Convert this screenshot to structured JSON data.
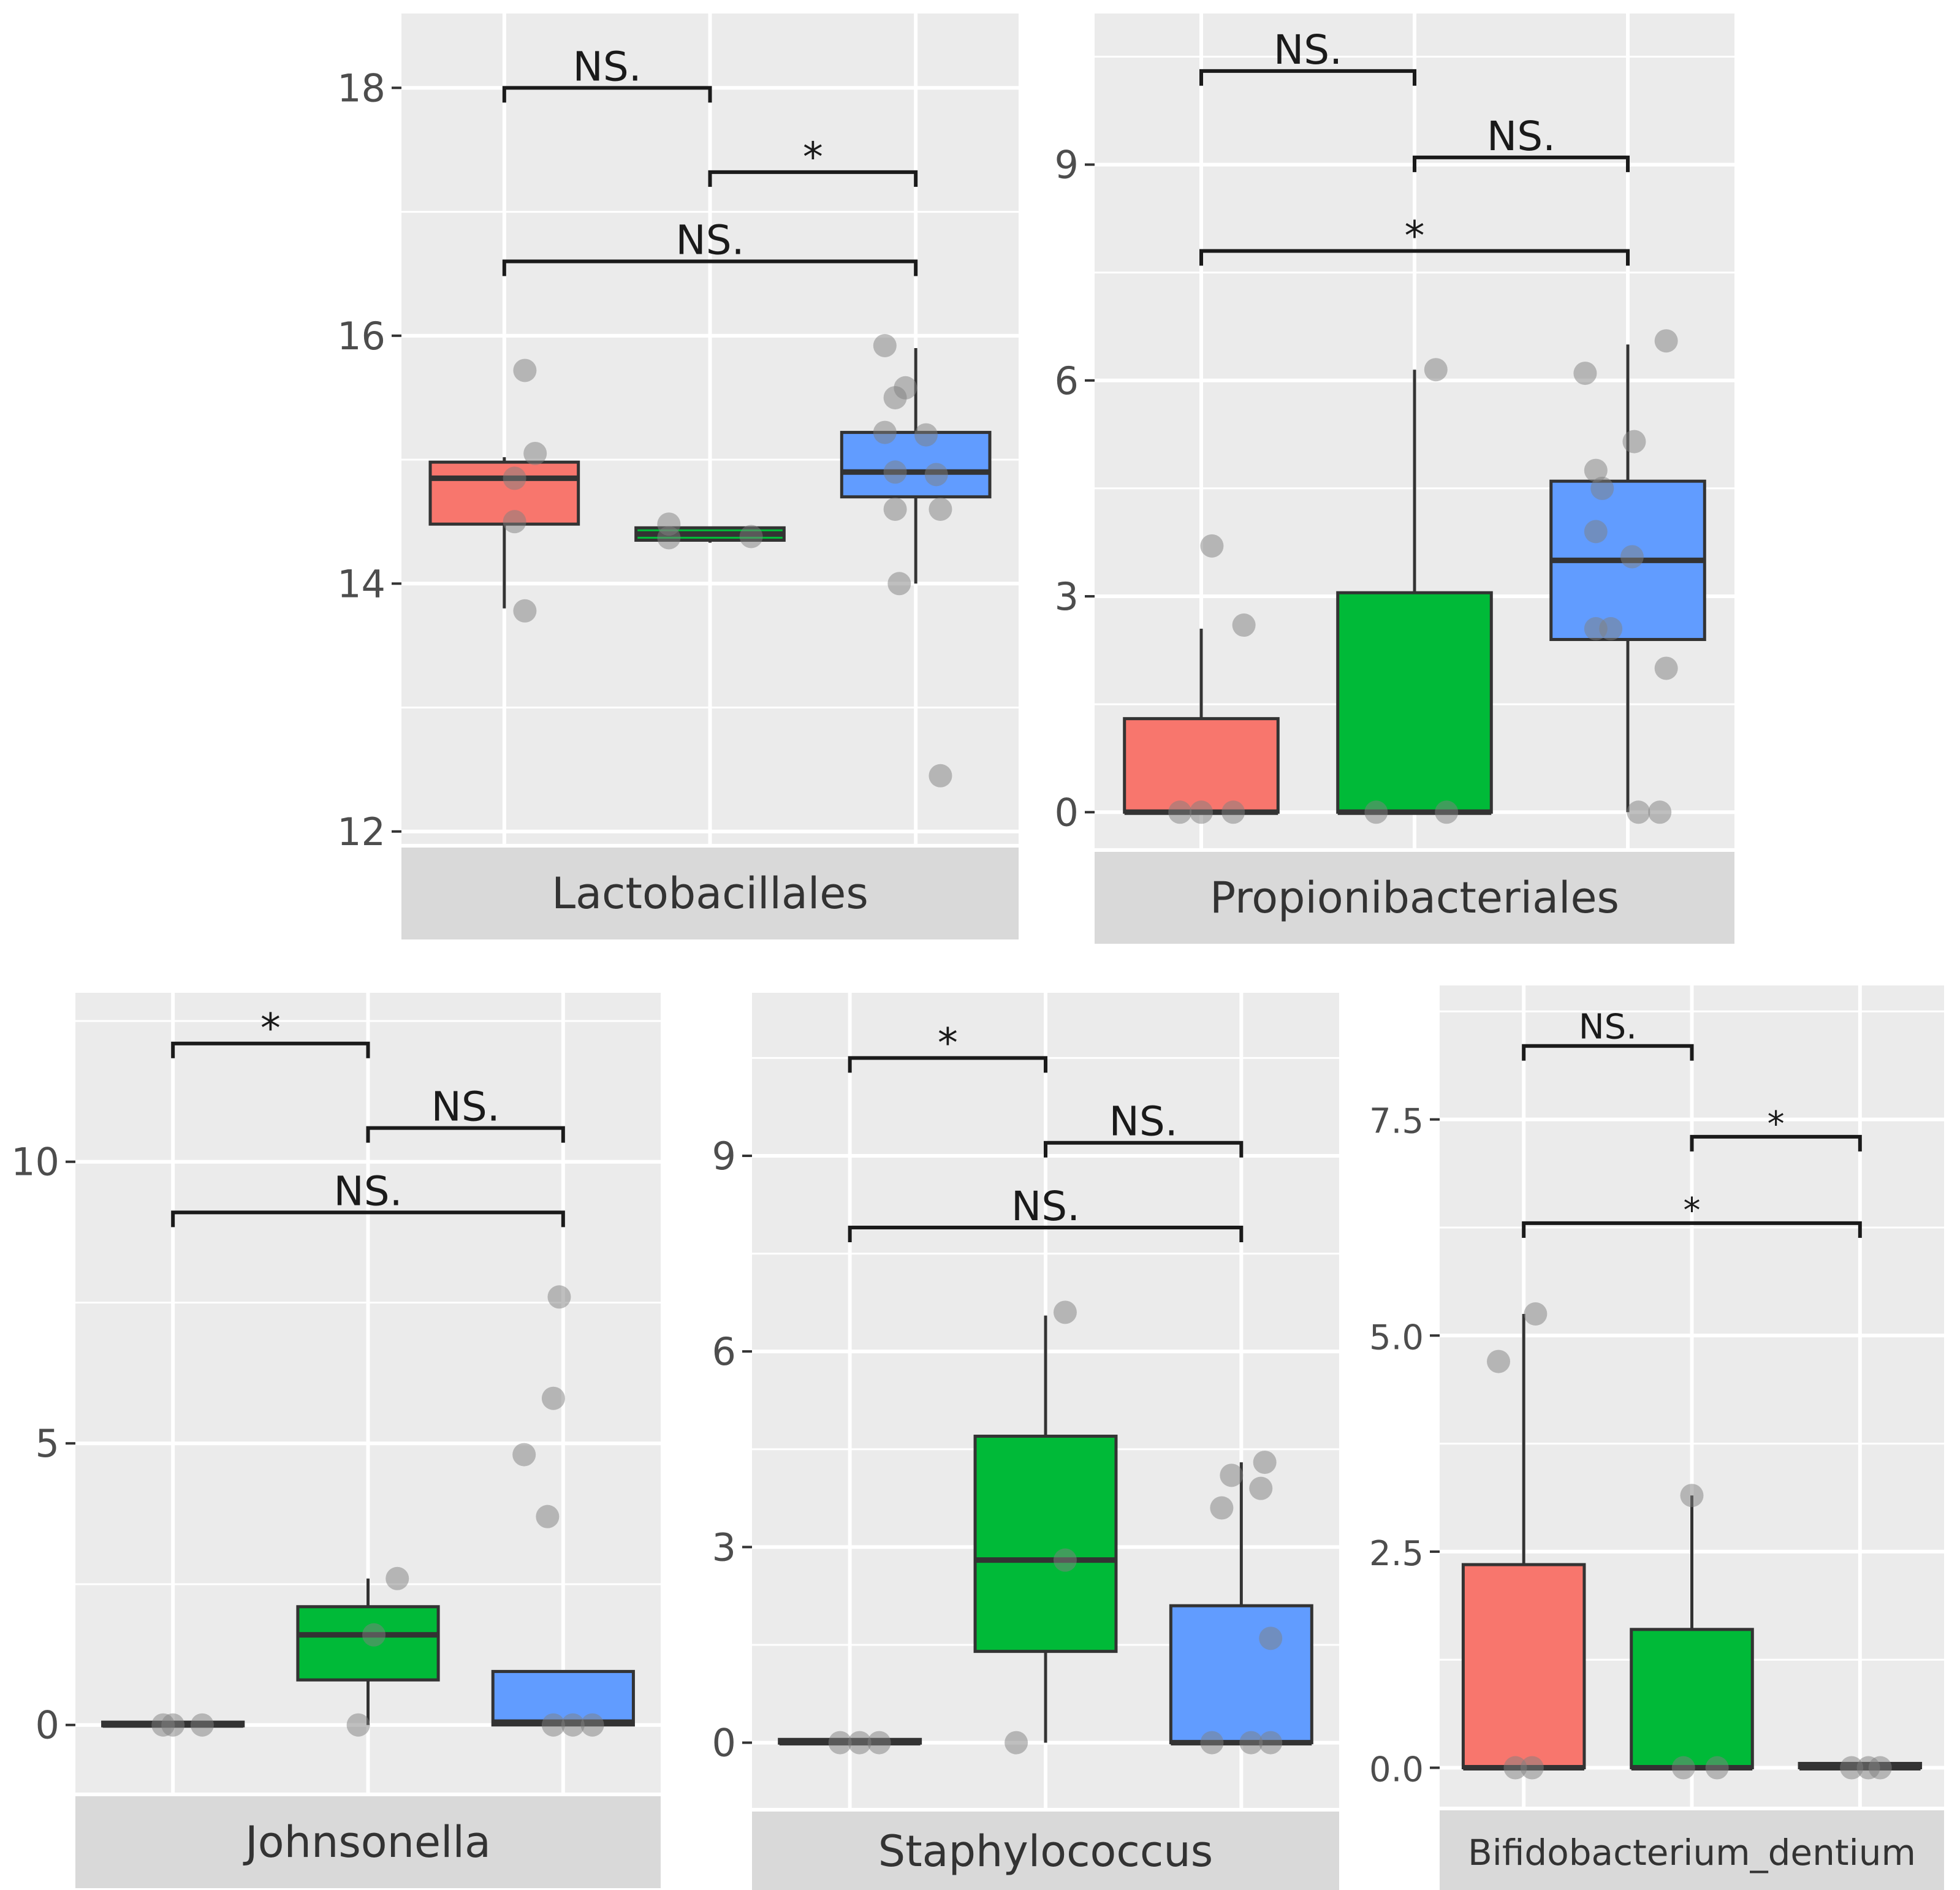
{
  "colors": {
    "panel_bg": "#ebebeb",
    "grid": "#ffffff",
    "strip_bg": "#d9d9d9",
    "group1": "#f8766d",
    "group2": "#00ba38",
    "group3": "#619cff",
    "outline": "#333333",
    "point": "#808080"
  },
  "chart_data": [
    {
      "type": "box",
      "title": "Lactobacillales",
      "groups": [
        "group1",
        "group2",
        "group3"
      ],
      "ylim": [
        11.9,
        18.6
      ],
      "yticks": [
        12,
        14,
        16,
        18
      ],
      "ytick_labels": [
        "12",
        "14",
        "16",
        "18"
      ],
      "boxes": [
        {
          "group": "group1",
          "min": 13.8,
          "q1": 14.48,
          "median": 14.85,
          "q3": 14.98,
          "max": 15.02
        },
        {
          "group": "group2",
          "min": 14.33,
          "q1": 14.35,
          "median": 14.4,
          "q3": 14.45,
          "max": 14.45
        },
        {
          "group": "group3",
          "min": 14.0,
          "q1": 14.7,
          "median": 14.9,
          "q3": 15.22,
          "max": 15.9
        }
      ],
      "points": [
        {
          "group": 1,
          "jitter": 0.1,
          "y": 15.72
        },
        {
          "group": 1,
          "jitter": 0.15,
          "y": 15.05
        },
        {
          "group": 1,
          "jitter": 0.05,
          "y": 14.85
        },
        {
          "group": 1,
          "jitter": 0.05,
          "y": 14.5
        },
        {
          "group": 1,
          "jitter": 0.1,
          "y": 13.78
        },
        {
          "group": 2,
          "jitter": -0.2,
          "y": 14.48
        },
        {
          "group": 2,
          "jitter": -0.2,
          "y": 14.37
        },
        {
          "group": 2,
          "jitter": 0.2,
          "y": 14.38
        },
        {
          "group": 3,
          "jitter": -0.15,
          "y": 15.92
        },
        {
          "group": 3,
          "jitter": -0.05,
          "y": 15.58
        },
        {
          "group": 3,
          "jitter": -0.1,
          "y": 15.5
        },
        {
          "group": 3,
          "jitter": -0.15,
          "y": 15.22
        },
        {
          "group": 3,
          "jitter": 0.05,
          "y": 15.2
        },
        {
          "group": 3,
          "jitter": -0.1,
          "y": 14.9
        },
        {
          "group": 3,
          "jitter": 0.1,
          "y": 14.88
        },
        {
          "group": 3,
          "jitter": -0.1,
          "y": 14.6
        },
        {
          "group": 3,
          "jitter": 0.12,
          "y": 14.6
        },
        {
          "group": 3,
          "jitter": -0.08,
          "y": 14.0
        },
        {
          "group": 3,
          "jitter": 0.12,
          "y": 12.45
        }
      ],
      "comparisons": [
        {
          "from": 1,
          "to": 2,
          "y": 18.0,
          "label": "NS."
        },
        {
          "from": 2,
          "to": 3,
          "y": 17.32,
          "label": "*"
        },
        {
          "from": 1,
          "to": 3,
          "y": 16.6,
          "label": "NS."
        }
      ]
    },
    {
      "type": "box",
      "title": "Propionibacteriales",
      "groups": [
        "group1",
        "group2",
        "group3"
      ],
      "ylim": [
        -0.5,
        11.1
      ],
      "yticks": [
        0,
        3,
        6,
        9
      ],
      "ytick_labels": [
        "0",
        "3",
        "6",
        "9"
      ],
      "boxes": [
        {
          "group": "group1",
          "min": 0.0,
          "q1": 0.0,
          "median": 0.0,
          "q3": 1.3,
          "max": 2.55
        },
        {
          "group": "group2",
          "min": 0.0,
          "q1": 0.0,
          "median": 0.0,
          "q3": 3.05,
          "max": 6.15
        },
        {
          "group": "group3",
          "min": 0.0,
          "q1": 2.4,
          "median": 3.5,
          "q3": 4.6,
          "max": 6.5
        }
      ],
      "points": [
        {
          "group": 1,
          "jitter": 0.05,
          "y": 3.7
        },
        {
          "group": 1,
          "jitter": 0.2,
          "y": 2.6
        },
        {
          "group": 1,
          "jitter": -0.1,
          "y": 0.0
        },
        {
          "group": 1,
          "jitter": 0.0,
          "y": 0.0
        },
        {
          "group": 1,
          "jitter": 0.15,
          "y": 0.0
        },
        {
          "group": 2,
          "jitter": -0.18,
          "y": 0.0
        },
        {
          "group": 2,
          "jitter": 0.15,
          "y": 0.0
        },
        {
          "group": 2,
          "jitter": 0.1,
          "y": 6.15
        },
        {
          "group": 3,
          "jitter": -0.2,
          "y": 6.1
        },
        {
          "group": 3,
          "jitter": 0.18,
          "y": 6.55
        },
        {
          "group": 3,
          "jitter": 0.03,
          "y": 5.15
        },
        {
          "group": 3,
          "jitter": -0.15,
          "y": 4.75
        },
        {
          "group": 3,
          "jitter": -0.12,
          "y": 4.5
        },
        {
          "group": 3,
          "jitter": -0.15,
          "y": 3.9
        },
        {
          "group": 3,
          "jitter": 0.02,
          "y": 3.55
        },
        {
          "group": 3,
          "jitter": -0.15,
          "y": 2.55
        },
        {
          "group": 3,
          "jitter": -0.08,
          "y": 2.55
        },
        {
          "group": 3,
          "jitter": 0.18,
          "y": 2.0
        },
        {
          "group": 3,
          "jitter": 0.05,
          "y": 0.0
        },
        {
          "group": 3,
          "jitter": 0.15,
          "y": 0.0
        }
      ],
      "comparisons": [
        {
          "from": 1,
          "to": 2,
          "y": 10.3,
          "label": "NS."
        },
        {
          "from": 2,
          "to": 3,
          "y": 9.1,
          "label": "NS."
        },
        {
          "from": 1,
          "to": 3,
          "y": 7.8,
          "label": "*"
        }
      ]
    },
    {
      "type": "box",
      "title": "Johnsonella",
      "groups": [
        "group1",
        "group2",
        "group3"
      ],
      "ylim": [
        -1.2,
        13.0
      ],
      "yticks": [
        0,
        5,
        10
      ],
      "ytick_labels": [
        "0",
        "5",
        "10"
      ],
      "boxes": [
        {
          "group": "group1",
          "min": 0.0,
          "q1": 0.0,
          "median": 0.0,
          "q3": 0.05,
          "max": 0.05
        },
        {
          "group": "group2",
          "min": 0.0,
          "q1": 0.8,
          "median": 1.6,
          "q3": 2.1,
          "max": 2.6
        },
        {
          "group": "group3",
          "min": 0.0,
          "q1": 0.0,
          "median": 0.05,
          "q3": 0.95,
          "max": 0.95
        }
      ],
      "points": [
        {
          "group": 1,
          "jitter": -0.05,
          "y": 0.0
        },
        {
          "group": 1,
          "jitter": 0.0,
          "y": 0.0
        },
        {
          "group": 1,
          "jitter": 0.15,
          "y": 0.0
        },
        {
          "group": 2,
          "jitter": -0.05,
          "y": 0.0
        },
        {
          "group": 2,
          "jitter": 0.03,
          "y": 1.6
        },
        {
          "group": 2,
          "jitter": 0.15,
          "y": 2.6
        },
        {
          "group": 3,
          "jitter": -0.02,
          "y": 7.6
        },
        {
          "group": 3,
          "jitter": -0.05,
          "y": 5.8
        },
        {
          "group": 3,
          "jitter": -0.2,
          "y": 4.8
        },
        {
          "group": 3,
          "jitter": -0.08,
          "y": 3.7
        },
        {
          "group": 3,
          "jitter": -0.05,
          "y": 0.0
        },
        {
          "group": 3,
          "jitter": 0.05,
          "y": 0.0
        },
        {
          "group": 3,
          "jitter": 0.15,
          "y": 0.0
        }
      ],
      "comparisons": [
        {
          "from": 1,
          "to": 2,
          "y": 12.1,
          "label": "*"
        },
        {
          "from": 2,
          "to": 3,
          "y": 10.6,
          "label": "NS."
        },
        {
          "from": 1,
          "to": 3,
          "y": 9.1,
          "label": "NS."
        }
      ]
    },
    {
      "type": "box",
      "title": "Staphylococcus",
      "groups": [
        "group1",
        "group2",
        "group3"
      ],
      "ylim": [
        -1.0,
        11.5
      ],
      "yticks": [
        0,
        3,
        6,
        9
      ],
      "ytick_labels": [
        "0",
        "3",
        "6",
        "9"
      ],
      "boxes": [
        {
          "group": "group1",
          "min": 0.0,
          "q1": 0.0,
          "median": 0.0,
          "q3": 0.05,
          "max": 0.05
        },
        {
          "group": "group2",
          "min": 0.0,
          "q1": 1.4,
          "median": 2.8,
          "q3": 4.7,
          "max": 6.55
        },
        {
          "group": "group3",
          "min": 0.0,
          "q1": 0.0,
          "median": 0.0,
          "q3": 2.1,
          "max": 4.3
        }
      ],
      "points": [
        {
          "group": 1,
          "jitter": -0.05,
          "y": 0.0
        },
        {
          "group": 1,
          "jitter": 0.05,
          "y": 0.0
        },
        {
          "group": 1,
          "jitter": 0.15,
          "y": 0.0
        },
        {
          "group": 2,
          "jitter": -0.15,
          "y": 0.0
        },
        {
          "group": 2,
          "jitter": 0.1,
          "y": 2.8
        },
        {
          "group": 2,
          "jitter": 0.1,
          "y": 6.6
        },
        {
          "group": 3,
          "jitter": 0.12,
          "y": 4.3
        },
        {
          "group": 3,
          "jitter": -0.05,
          "y": 4.1
        },
        {
          "group": 3,
          "jitter": 0.1,
          "y": 3.9
        },
        {
          "group": 3,
          "jitter": -0.1,
          "y": 3.6
        },
        {
          "group": 3,
          "jitter": 0.15,
          "y": 1.6
        },
        {
          "group": 3,
          "jitter": -0.15,
          "y": 0.0
        },
        {
          "group": 3,
          "jitter": 0.05,
          "y": 0.0
        },
        {
          "group": 3,
          "jitter": 0.15,
          "y": 0.0
        }
      ],
      "comparisons": [
        {
          "from": 1,
          "to": 2,
          "y": 10.5,
          "label": "*"
        },
        {
          "from": 2,
          "to": 3,
          "y": 9.2,
          "label": "NS."
        },
        {
          "from": 1,
          "to": 3,
          "y": 7.9,
          "label": "NS."
        }
      ]
    },
    {
      "type": "box",
      "title": "Bifidobacterium_dentium",
      "groups": [
        "group1",
        "group2",
        "group3"
      ],
      "ylim": [
        -0.45,
        9.05
      ],
      "yticks": [
        0.0,
        2.5,
        5.0,
        7.5
      ],
      "ytick_labels": [
        "0.0",
        "2.5",
        "5.0",
        "7.5"
      ],
      "boxes": [
        {
          "group": "group1",
          "min": 0.0,
          "q1": 0.0,
          "median": 0.0,
          "q3": 2.35,
          "max": 5.25
        },
        {
          "group": "group2",
          "min": 0.0,
          "q1": 0.0,
          "median": 0.0,
          "q3": 1.6,
          "max": 3.15
        },
        {
          "group": "group3",
          "min": 0.0,
          "q1": 0.0,
          "median": 0.0,
          "q3": 0.05,
          "max": 0.05
        }
      ],
      "points": [
        {
          "group": 1,
          "jitter": -0.15,
          "y": 4.7
        },
        {
          "group": 1,
          "jitter": 0.07,
          "y": 5.25
        },
        {
          "group": 1,
          "jitter": -0.05,
          "y": 0.0
        },
        {
          "group": 1,
          "jitter": 0.05,
          "y": 0.0
        },
        {
          "group": 2,
          "jitter": 0.0,
          "y": 3.15
        },
        {
          "group": 2,
          "jitter": -0.05,
          "y": 0.0
        },
        {
          "group": 2,
          "jitter": 0.15,
          "y": 0.0
        },
        {
          "group": 3,
          "jitter": -0.05,
          "y": 0.0
        },
        {
          "group": 3,
          "jitter": 0.05,
          "y": 0.0
        },
        {
          "group": 3,
          "jitter": 0.12,
          "y": 0.0
        }
      ],
      "comparisons": [
        {
          "from": 1,
          "to": 2,
          "y": 8.35,
          "label": "NS."
        },
        {
          "from": 2,
          "to": 3,
          "y": 7.3,
          "label": "*"
        },
        {
          "from": 1,
          "to": 3,
          "y": 6.3,
          "label": "*"
        }
      ]
    }
  ]
}
